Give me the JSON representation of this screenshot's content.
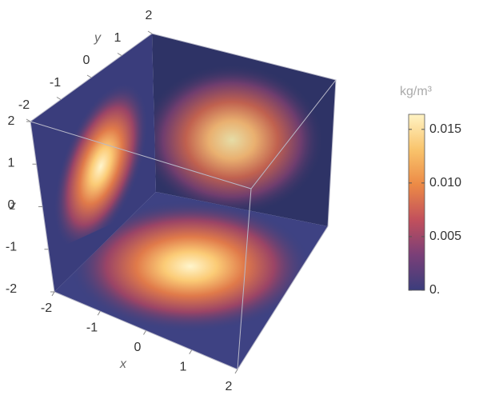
{
  "chart_data": {
    "type": "density3d",
    "axes": {
      "x": {
        "label": "x",
        "lim": [
          -2,
          2
        ],
        "ticks": [
          -2,
          -1,
          0,
          1,
          2
        ]
      },
      "y": {
        "label": "y",
        "lim": [
          -2,
          2
        ],
        "ticks": [
          -2,
          -1,
          0,
          1,
          2
        ]
      },
      "z": {
        "label": "z",
        "lim": [
          -2,
          2
        ],
        "ticks": [
          -2,
          -1,
          0,
          1,
          2
        ]
      }
    },
    "colorbar": {
      "label": "kg/m³",
      "lim": [
        0,
        0.0164
      ],
      "ticks": [
        {
          "value": 0,
          "label": "0."
        },
        0.005,
        {
          "value": 0.01,
          "label": "0.010"
        },
        0.015
      ],
      "colors": [
        "#3b3d7c",
        "#7a3f78",
        "#c2505c",
        "#ec8a46",
        "#f9c46c",
        "#fff3c4"
      ]
    }
  }
}
